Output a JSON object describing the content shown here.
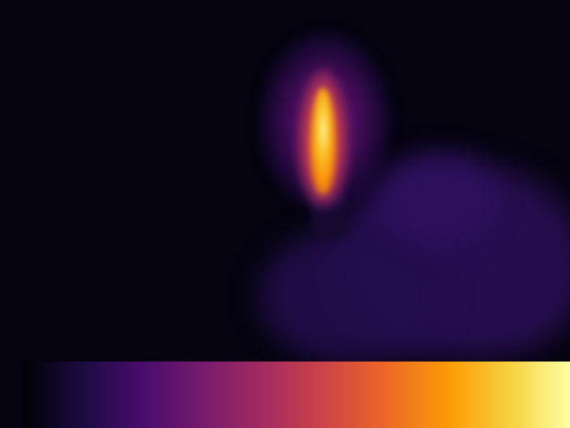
{
  "scene": {
    "subject": "thermal-image-lighter-flame",
    "palette": "inferno",
    "colors": {
      "background": "#04030f",
      "hand": "#2a0f55",
      "flame_core": "#fcffa4",
      "flame_mid": "#f98e09",
      "flame_outer": "#cf4446",
      "halo": "#781c6d"
    }
  },
  "colorbar": {
    "orientation": "horizontal",
    "colormap": "inferno",
    "stops": [
      "#000004",
      "#1b0c41",
      "#4a0c6b",
      "#781c6d",
      "#a52c60",
      "#cf4446",
      "#ed6925",
      "#fb9b06",
      "#f7d13d",
      "#fcffa4"
    ]
  }
}
